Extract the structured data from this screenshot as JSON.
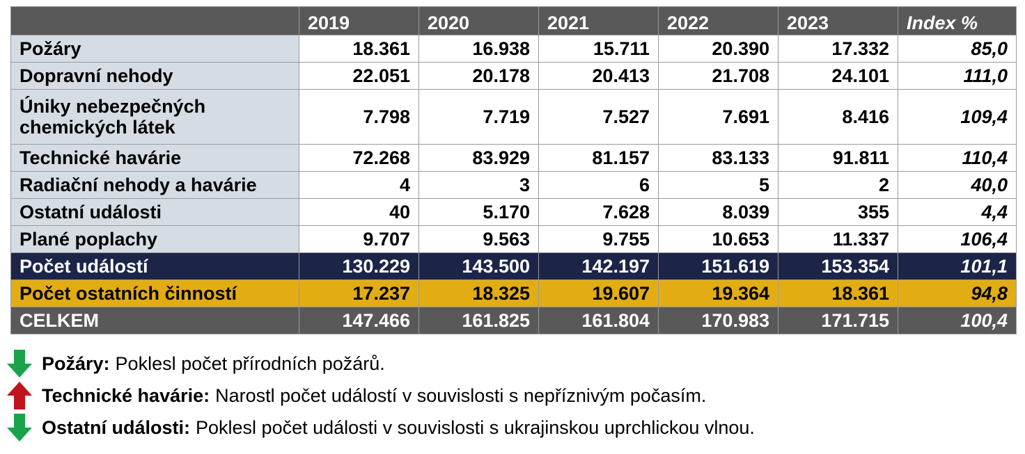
{
  "table": {
    "headers": [
      "",
      "2019",
      "2020",
      "2021",
      "2022",
      "2023",
      "Index %"
    ],
    "rows": [
      {
        "label": "Požáry",
        "values": [
          "18.361",
          "16.938",
          "15.711",
          "20.390",
          "17.332"
        ],
        "index": "85,0"
      },
      {
        "label": "Dopravní nehody",
        "values": [
          "22.051",
          "20.178",
          "20.413",
          "21.708",
          "24.101"
        ],
        "index": "111,0"
      },
      {
        "label": "Úniky nebezpečných chemických látek",
        "values": [
          "7.798",
          "7.719",
          "7.527",
          "7.691",
          "8.416"
        ],
        "index": "109,4"
      },
      {
        "label": "Technické havárie",
        "values": [
          "72.268",
          "83.929",
          "81.157",
          "83.133",
          "91.811"
        ],
        "index": "110,4"
      },
      {
        "label": "Radiační nehody a havárie",
        "values": [
          "4",
          "3",
          "6",
          "5",
          "2"
        ],
        "index": "40,0"
      },
      {
        "label": "Ostatní události",
        "values": [
          "40",
          "5.170",
          "7.628",
          "8.039",
          "355"
        ],
        "index": "4,4"
      },
      {
        "label": "Plané poplachy",
        "values": [
          "9.707",
          "9.563",
          "9.755",
          "10.653",
          "11.337"
        ],
        "index": "106,4"
      },
      {
        "label": "Počet událostí",
        "values": [
          "130.229",
          "143.500",
          "142.197",
          "151.619",
          "153.354"
        ],
        "index": "101,1"
      },
      {
        "label": "Počet ostatních činností",
        "values": [
          "17.237",
          "18.325",
          "19.607",
          "19.364",
          "18.361"
        ],
        "index": "94,8"
      },
      {
        "label": "CELKEM",
        "values": [
          "147.466",
          "161.825",
          "161.804",
          "170.983",
          "171.715"
        ],
        "index": "100,4"
      }
    ]
  },
  "notes": [
    {
      "direction": "down",
      "color": "#1aa34a",
      "key": "Požáry:",
      "text": "Poklesl počet přírodních požárů."
    },
    {
      "direction": "up",
      "color": "#c0141c",
      "key": "Technické havárie:",
      "text": "Narostl počet událostí v souvislosti s nepříznivým počasím."
    },
    {
      "direction": "down",
      "color": "#1aa34a",
      "key": "Ostatní události:",
      "text": "Poklesl počet události v souvislosti s ukrajinskou uprchlickou vlnou."
    }
  ]
}
